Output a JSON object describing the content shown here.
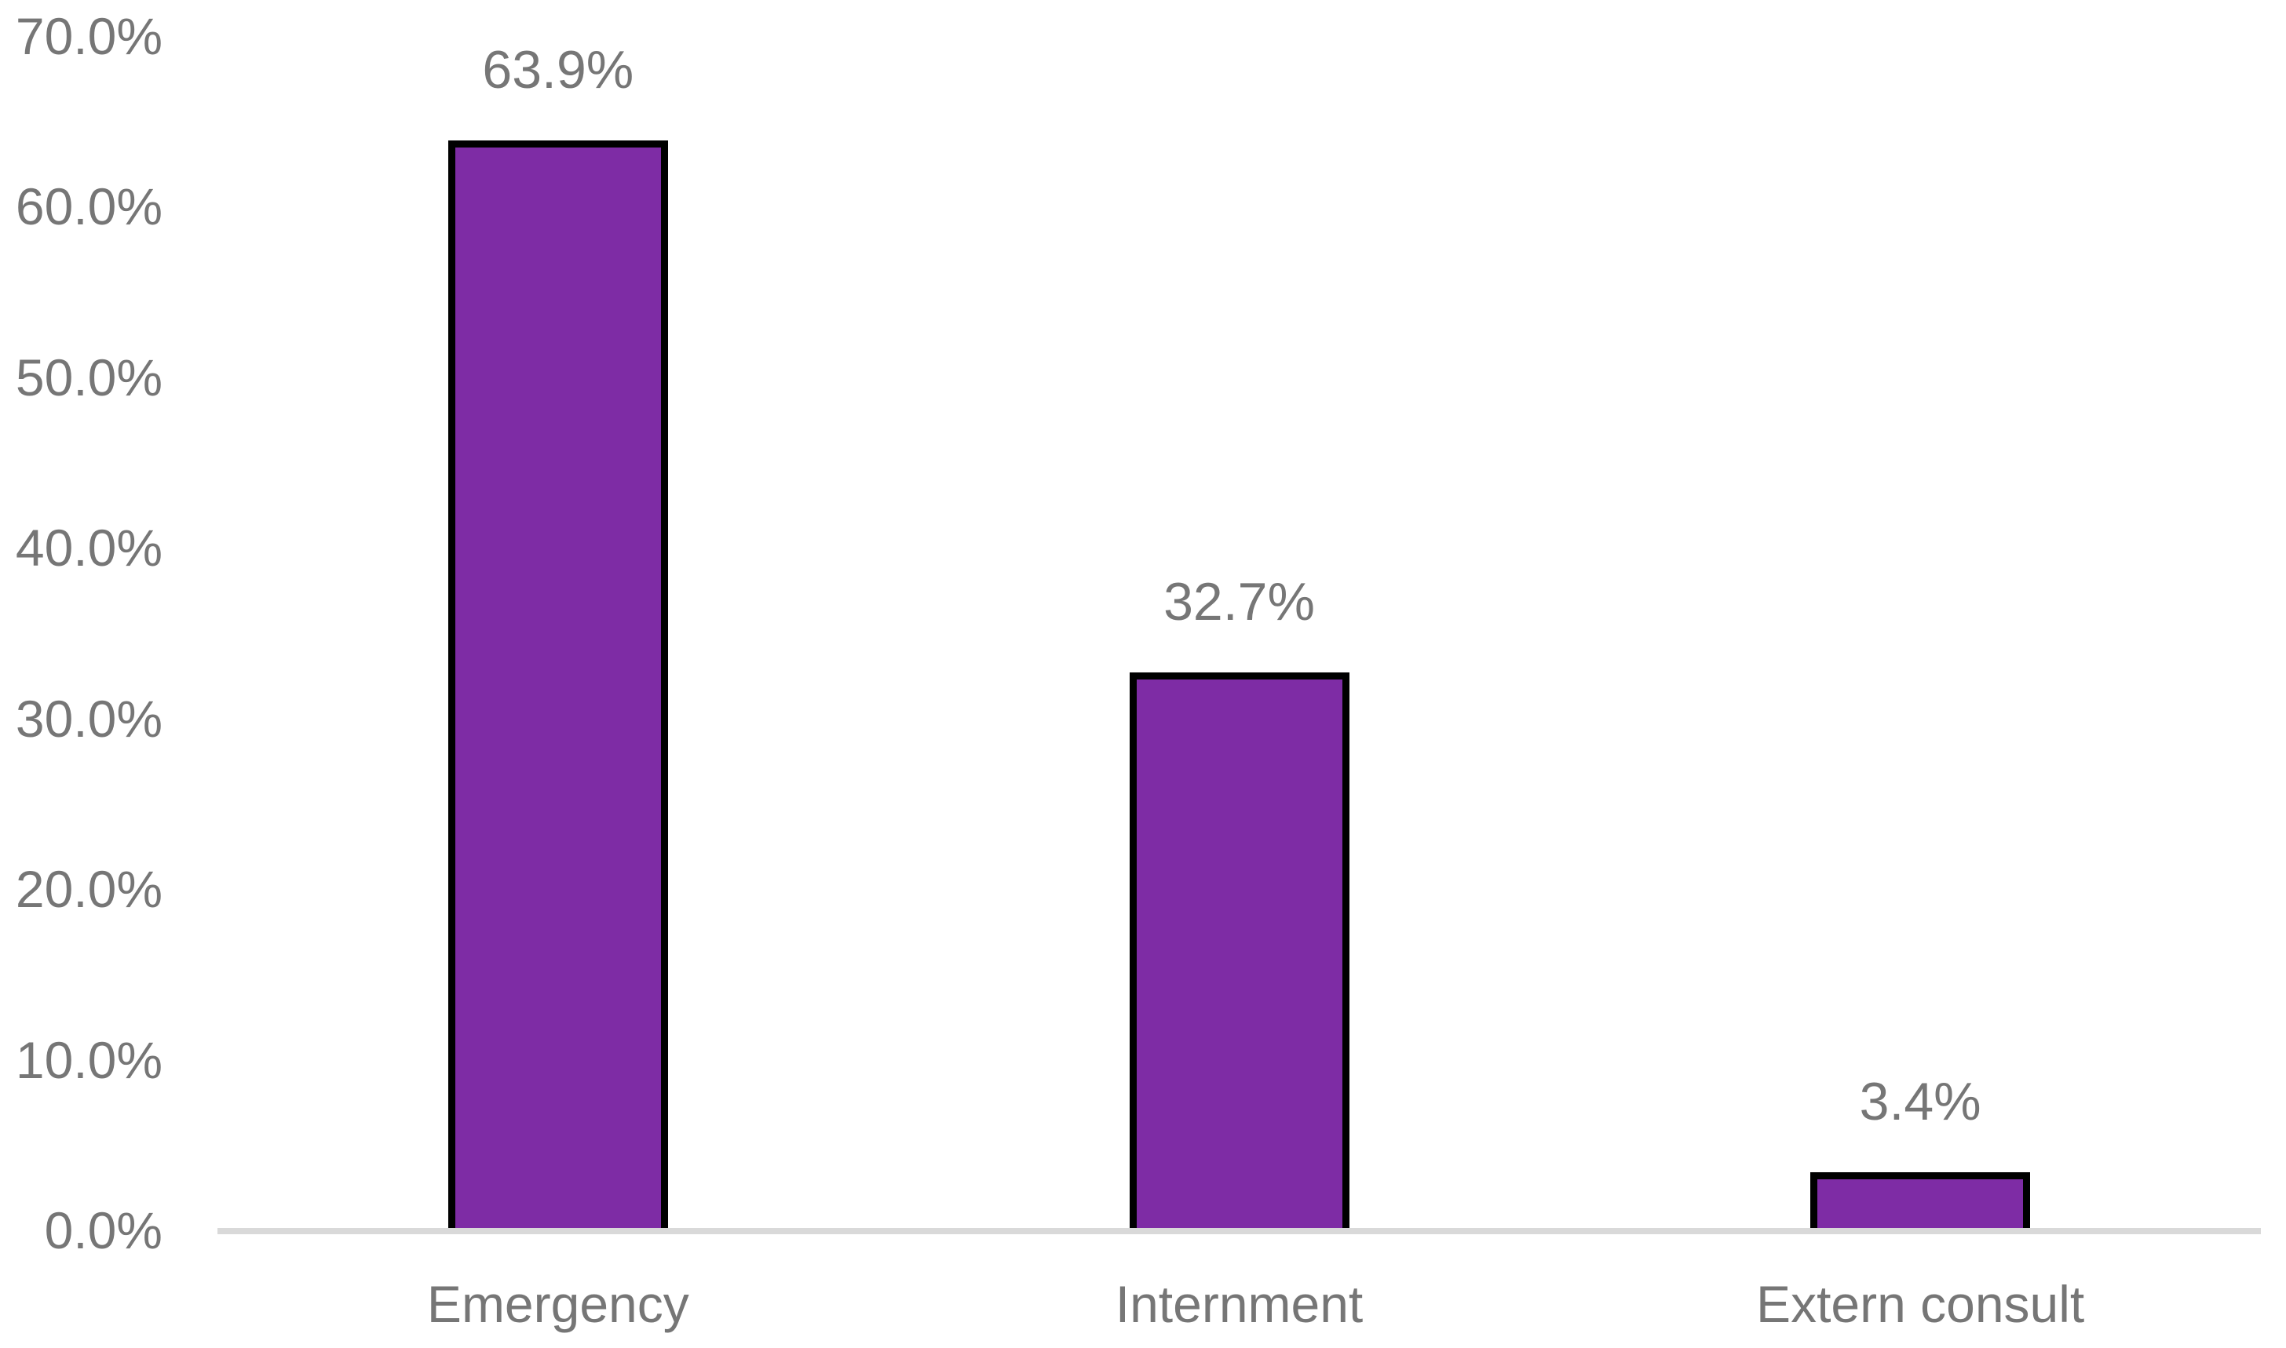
{
  "chart_data": {
    "type": "bar",
    "title": "",
    "xlabel": "",
    "ylabel": "",
    "categories": [
      "Emergency",
      "Internment",
      "Extern consult"
    ],
    "values": [
      63.9,
      32.7,
      3.4
    ],
    "data_labels": [
      "63.9%",
      "32.7%",
      "3.4%"
    ],
    "y_ticks": [
      {
        "label": "70.0%",
        "value": 70
      },
      {
        "label": "60.0%",
        "value": 60
      },
      {
        "label": "50.0%",
        "value": 50
      },
      {
        "label": "40.0%",
        "value": 40
      },
      {
        "label": "30.0%",
        "value": 30
      },
      {
        "label": "20.0%",
        "value": 20
      },
      {
        "label": "10.0%",
        "value": 10
      },
      {
        "label": "0.0%",
        "value": 0
      }
    ],
    "ylim": [
      0,
      70
    ],
    "grid": false,
    "legend": false,
    "colors": {
      "bar_fill": "#7E2CA5",
      "bar_border": "#000000",
      "axis_line": "#D9D9D9",
      "text": "#767676"
    }
  }
}
